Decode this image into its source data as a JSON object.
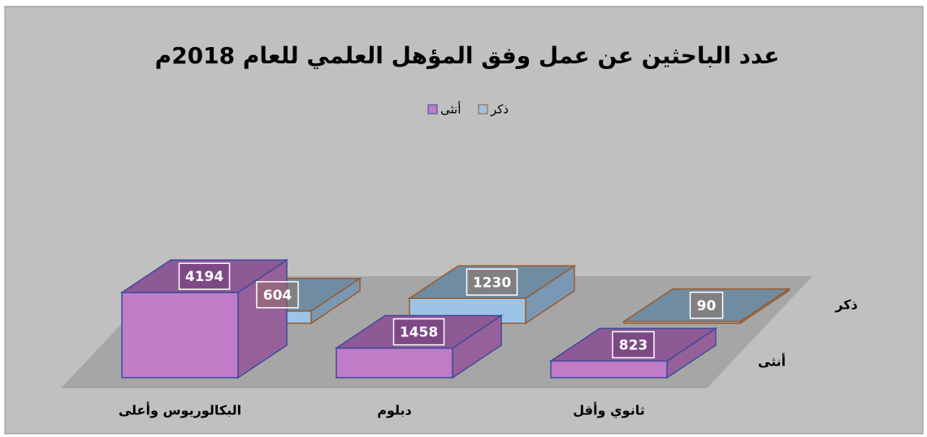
{
  "chart_data": {
    "type": "bar3d",
    "title": "عدد الباحثين عن عمل وفق المؤهل العلمي للعام 2018م",
    "categories": [
      "ثانوي وأقل",
      "دبلوم",
      "البكالوريوس وأعلى"
    ],
    "series": [
      {
        "name": "ذكر",
        "color": "#9dc3e6",
        "values": [
          90,
          1230,
          604
        ]
      },
      {
        "name": "أنثى",
        "color": "#c07cc7",
        "values": [
          823,
          1458,
          4194
        ]
      }
    ]
  }
}
